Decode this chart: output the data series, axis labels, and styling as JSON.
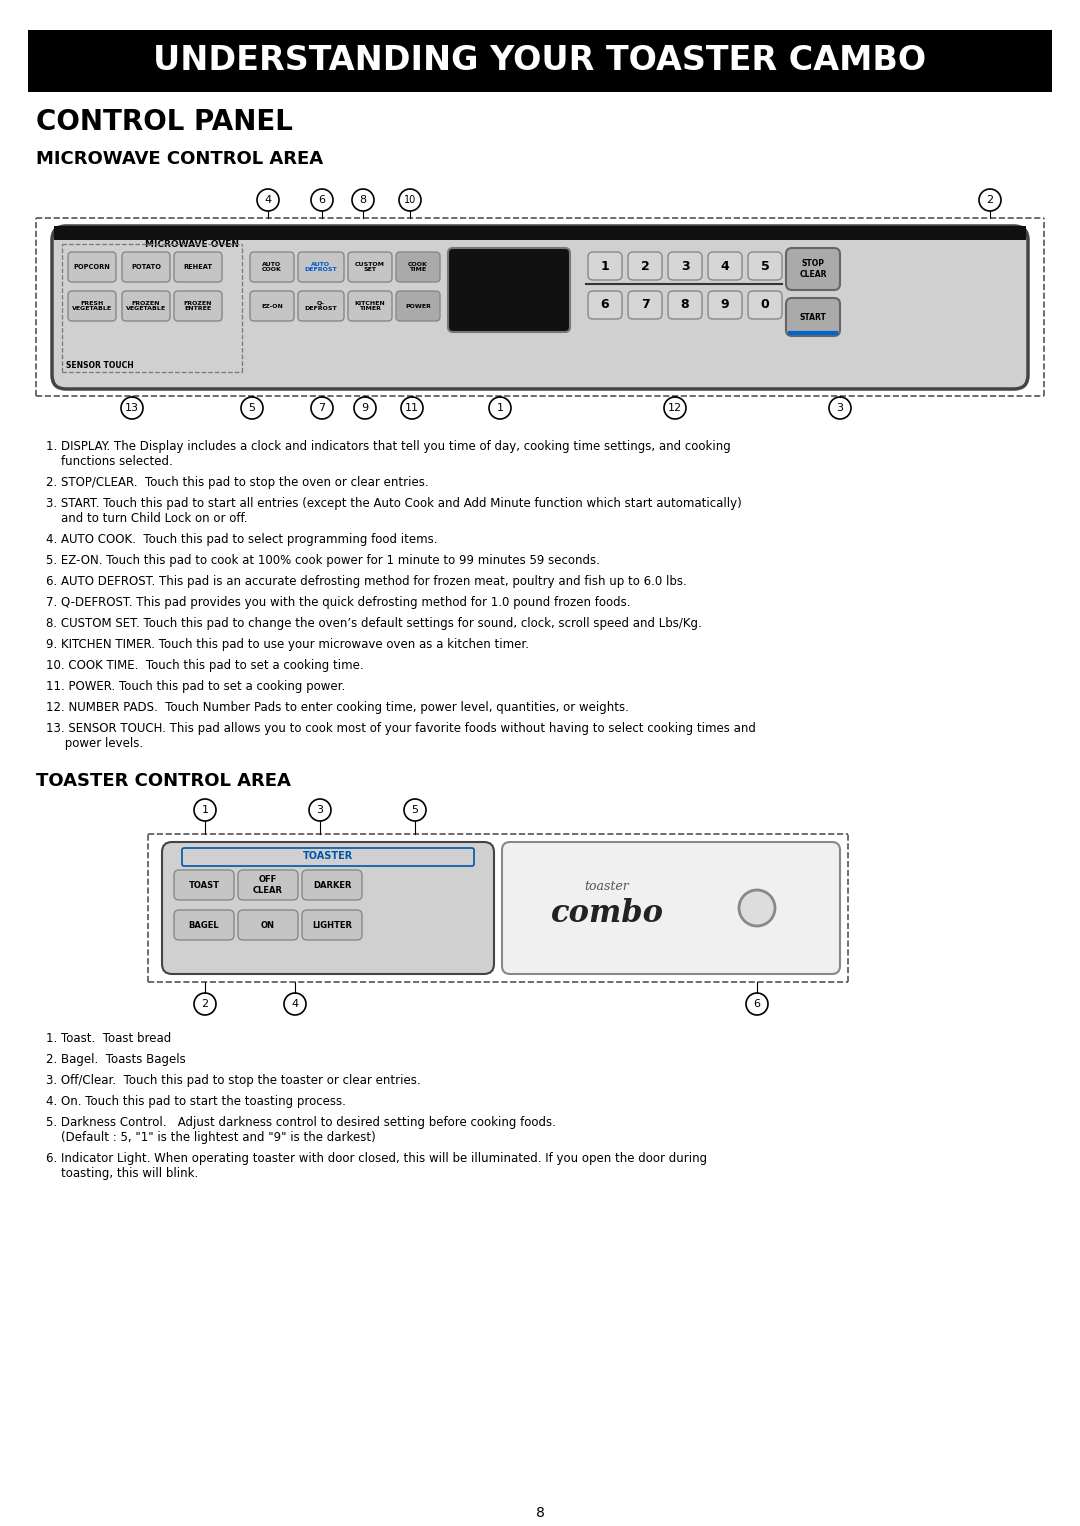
{
  "title": "UNDERSTANDING YOUR TOASTER CAMBO",
  "section1": "CONTROL PANEL",
  "section2": "MICROWAVE CONTROL AREA",
  "section3": "TOASTER CONTROL AREA",
  "microwave_items": [
    [
      "1. DISPLAY. The Display includes a clock and indicators that tell you time of day, cooking time settings, and cooking",
      "    functions selected."
    ],
    [
      "2. STOP/CLEAR.  Touch this pad to stop the oven or clear entries."
    ],
    [
      "3. START. Touch this pad to start all entries (except the Auto Cook and Add Minute function which start automatically)",
      "    and to turn Child Lock on or off."
    ],
    [
      "4. AUTO COOK.  Touch this pad to select programming food items."
    ],
    [
      "5. EZ-ON. Touch this pad to cook at 100% cook power for 1 minute to 99 minutes 59 seconds."
    ],
    [
      "6. AUTO DEFROST. This pad is an accurate defrosting method for frozen meat, poultry and fish up to 6.0 lbs."
    ],
    [
      "7. Q-DEFROST. This pad provides you with the quick defrosting method for 1.0 pound frozen foods."
    ],
    [
      "8. CUSTOM SET. Touch this pad to change the oven’s default settings for sound, clock, scroll speed and Lbs/Kg."
    ],
    [
      "9. KITCHEN TIMER. Touch this pad to use your microwave oven as a kitchen timer."
    ],
    [
      "10. COOK TIME.  Touch this pad to set a cooking time."
    ],
    [
      "11. POWER. Touch this pad to set a cooking power."
    ],
    [
      "12. NUMBER PADS.  Touch Number Pads to enter cooking time, power level, quantities, or weights."
    ],
    [
      "13. SENSOR TOUCH. This pad allows you to cook most of your favorite foods without having to select cooking times and",
      "     power levels."
    ]
  ],
  "toaster_items": [
    [
      "1. Toast.  Toast bread"
    ],
    [
      "2. Bagel.  Toasts Bagels"
    ],
    [
      "3. Off/Clear.  Touch this pad to stop the toaster or clear entries."
    ],
    [
      "4. On. Touch this pad to start the toasting process."
    ],
    [
      "5. Darkness Control.   Adjust darkness control to desired setting before cooking foods.",
      "    (Default : 5, \"1\" is the lightest and \"9\" is the darkest)"
    ],
    [
      "6. Indicator Light. When operating toaster with door closed, this will be illuminated. If you open the door during",
      "    toasting, this will blink."
    ]
  ],
  "bg_color": "#ffffff",
  "title_bg": "#000000",
  "title_color": "#ffffff"
}
